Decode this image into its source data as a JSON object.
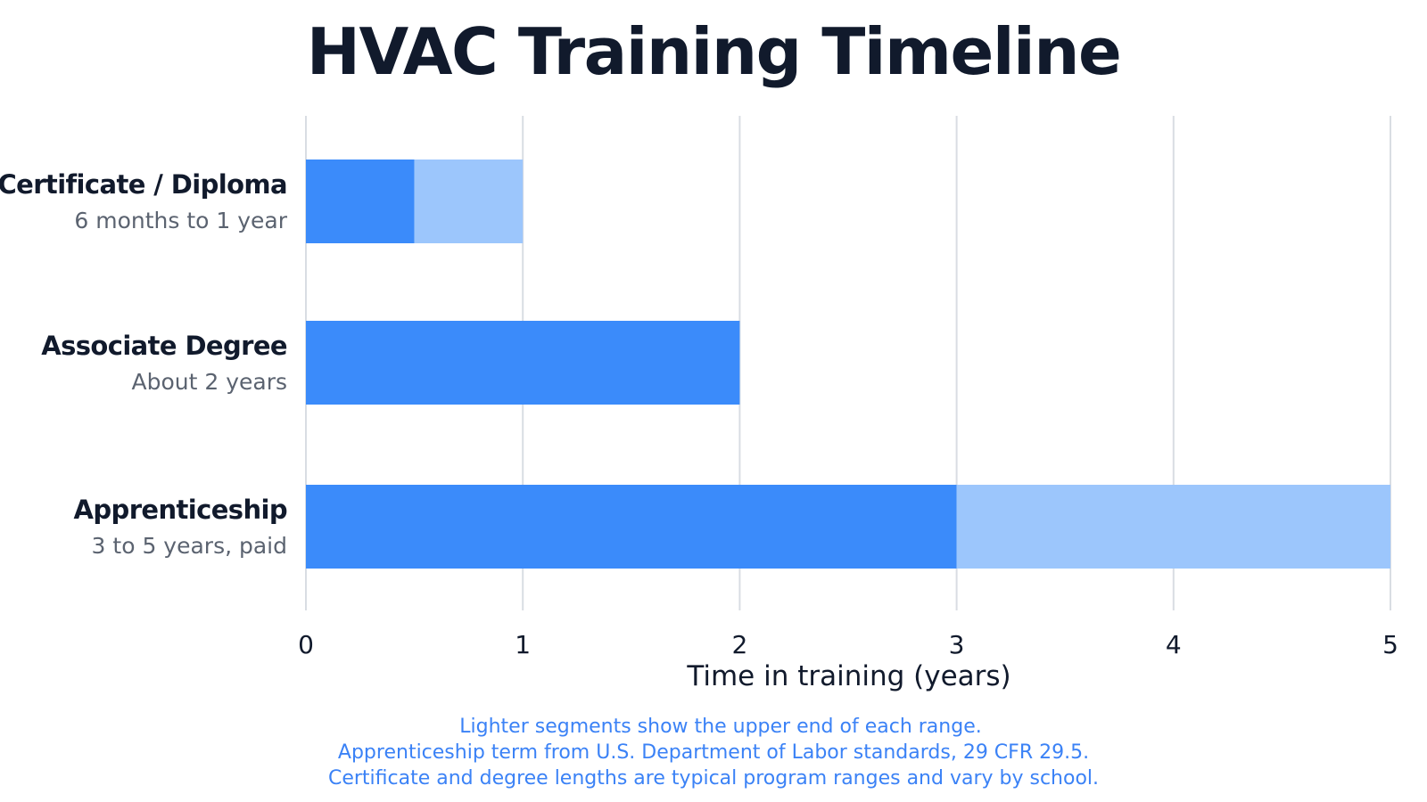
{
  "chart_data": {
    "type": "bar",
    "orientation": "horizontal",
    "stacked": true,
    "title": "HVAC Training Timeline",
    "xlabel": "Time in training (years)",
    "ylabel": "",
    "xlim": [
      0,
      5
    ],
    "xticks": [
      "0",
      "1",
      "2",
      "3",
      "4",
      "5"
    ],
    "grid": true,
    "categories": [
      {
        "label": "Certificate / Diploma",
        "sublabel": "6 months to 1 year"
      },
      {
        "label": "Associate Degree",
        "sublabel": "About 2 years"
      },
      {
        "label": "Apprenticeship",
        "sublabel": "3 to 5 years, paid"
      }
    ],
    "series": [
      {
        "values": [
          0.5,
          2,
          3
        ],
        "color": "#3b8bfa"
      },
      {
        "values": [
          0.5,
          0,
          2
        ],
        "color": "#9cc6fc"
      }
    ],
    "notes": [
      "Lighter segments show the upper end of each range.",
      "Apprenticeship term from U.S. Department of Labor standards, 29 CFR 29.5.",
      "Certificate and degree lengths are typical program ranges and vary by school."
    ],
    "colors": {
      "grid": "#d9dde3",
      "title": "#111a2c",
      "note": "#3b82f6"
    }
  }
}
